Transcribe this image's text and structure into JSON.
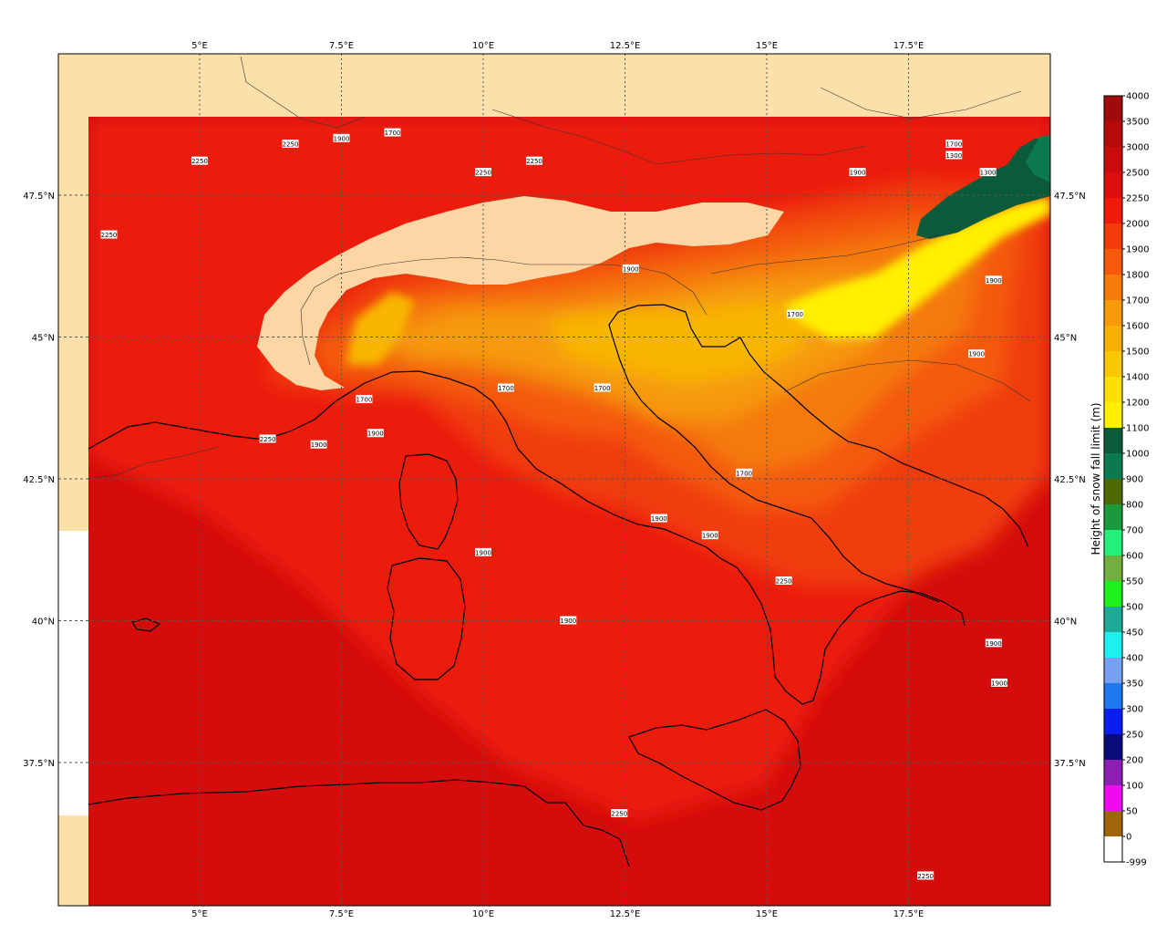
{
  "colors": {
    "background": "#ffffff",
    "land_outside": "#fce0aa",
    "sea_outside": "#ffffff",
    "base_field": "#d40c0c",
    "field_2250": "#ec1a0a",
    "field_2000": "#f03c0a",
    "field_1900": "#f45a0a",
    "field_1800": "#f47a0a",
    "field_1700": "#f69a0a",
    "field_1500": "#f8b600",
    "field_1200": "#fff000",
    "field_1000": "#0b5a3a",
    "field_900": "#0c7a4e",
    "snow_masked": "#fcd6a4",
    "coast": "#000000",
    "border": "#333333",
    "grid": "#555555"
  },
  "lon_ticks": [
    {
      "label": "5°E",
      "lon": 5
    },
    {
      "label": "7.5°E",
      "lon": 7.5
    },
    {
      "label": "10°E",
      "lon": 10
    },
    {
      "label": "12.5°E",
      "lon": 12.5
    },
    {
      "label": "15°E",
      "lon": 15
    },
    {
      "label": "17.5°E",
      "lon": 17.5
    }
  ],
  "lat_ticks": [
    {
      "label": "47.5°N",
      "lat": 47.5
    },
    {
      "label": "45°N",
      "lat": 45
    },
    {
      "label": "42.5°N",
      "lat": 42.5
    },
    {
      "label": "40°N",
      "lat": 40
    },
    {
      "label": "37.5°N",
      "lat": 37.5
    }
  ],
  "colorbar": {
    "title": "Height of snow fall limit (m)",
    "levels": [
      {
        "label": "4000",
        "color": "#a00a0a"
      },
      {
        "label": "3500",
        "color": "#b40a0a"
      },
      {
        "label": "3000",
        "color": "#c80c0c"
      },
      {
        "label": "2500",
        "color": "#dc0f0f"
      },
      {
        "label": "2250",
        "color": "#ee1a0a"
      },
      {
        "label": "2000",
        "color": "#f23c0a"
      },
      {
        "label": "1900",
        "color": "#f45a0a"
      },
      {
        "label": "1800",
        "color": "#f47a0a"
      },
      {
        "label": "1700",
        "color": "#f69a0a"
      },
      {
        "label": "1600",
        "color": "#f8b000"
      },
      {
        "label": "1500",
        "color": "#fac800"
      },
      {
        "label": "1400",
        "color": "#fce000"
      },
      {
        "label": "1200",
        "color": "#fff000"
      },
      {
        "label": "1100",
        "color": "#0b5a3a"
      },
      {
        "label": "1000",
        "color": "#0c7a4e"
      },
      {
        "label": "900",
        "color": "#4e6a00"
      },
      {
        "label": "800",
        "color": "#1a9a3a"
      },
      {
        "label": "700",
        "color": "#22f07a"
      },
      {
        "label": "600",
        "color": "#70b040"
      },
      {
        "label": "550",
        "color": "#1ef01e"
      },
      {
        "label": "500",
        "color": "#1eaa96"
      },
      {
        "label": "450",
        "color": "#1ef0f0"
      },
      {
        "label": "400",
        "color": "#78a0f0"
      },
      {
        "label": "350",
        "color": "#1e78f0"
      },
      {
        "label": "300",
        "color": "#0a1ef0"
      },
      {
        "label": "250",
        "color": "#0a0a78"
      },
      {
        "label": "200",
        "color": "#8c1eb4"
      },
      {
        "label": "100",
        "color": "#f00af0"
      },
      {
        "label": "50",
        "color": "#a0640a"
      },
      {
        "label": "0",
        "color": "#ffffff"
      },
      {
        "label": "-999",
        "color": "#000000"
      }
    ]
  },
  "contour_labels": [
    {
      "text": "2250",
      "lon": 6.6,
      "lat": 48.4
    },
    {
      "text": "2250",
      "lon": 5.0,
      "lat": 48.1
    },
    {
      "text": "2250",
      "lon": 3.4,
      "lat": 46.8
    },
    {
      "text": "1900",
      "lon": 7.5,
      "lat": 48.5
    },
    {
      "text": "1700",
      "lon": 8.4,
      "lat": 48.6
    },
    {
      "text": "2250",
      "lon": 10.0,
      "lat": 47.9
    },
    {
      "text": "2250",
      "lon": 10.9,
      "lat": 48.1
    },
    {
      "text": "1900",
      "lon": 16.6,
      "lat": 47.9
    },
    {
      "text": "1700",
      "lon": 18.3,
      "lat": 48.4
    },
    {
      "text": "1300",
      "lon": 18.3,
      "lat": 48.2
    },
    {
      "text": "1300",
      "lon": 18.9,
      "lat": 47.9
    },
    {
      "text": "1900",
      "lon": 12.6,
      "lat": 46.2
    },
    {
      "text": "1900",
      "lon": 19.0,
      "lat": 46.0
    },
    {
      "text": "1700",
      "lon": 15.5,
      "lat": 45.4
    },
    {
      "text": "1900",
      "lon": 18.7,
      "lat": 44.7
    },
    {
      "text": "1700",
      "lon": 10.4,
      "lat": 44.1
    },
    {
      "text": "1700",
      "lon": 12.1,
      "lat": 44.1
    },
    {
      "text": "1700",
      "lon": 7.9,
      "lat": 43.9
    },
    {
      "text": "1900",
      "lon": 8.1,
      "lat": 43.3
    },
    {
      "text": "2250",
      "lon": 6.2,
      "lat": 43.2
    },
    {
      "text": "1900",
      "lon": 7.1,
      "lat": 43.1
    },
    {
      "text": "1700",
      "lon": 14.6,
      "lat": 42.6
    },
    {
      "text": "1900",
      "lon": 13.1,
      "lat": 41.8
    },
    {
      "text": "1900",
      "lon": 14.0,
      "lat": 41.5
    },
    {
      "text": "1900",
      "lon": 10.0,
      "lat": 41.2
    },
    {
      "text": "2250",
      "lon": 15.3,
      "lat": 40.7
    },
    {
      "text": "1900",
      "lon": 11.5,
      "lat": 40.0
    },
    {
      "text": "1900",
      "lon": 19.0,
      "lat": 39.6
    },
    {
      "text": "1900",
      "lon": 19.1,
      "lat": 38.9
    },
    {
      "text": "2250",
      "lon": 12.4,
      "lat": 36.6
    },
    {
      "text": "2250",
      "lon": 17.8,
      "lat": 35.5
    }
  ]
}
